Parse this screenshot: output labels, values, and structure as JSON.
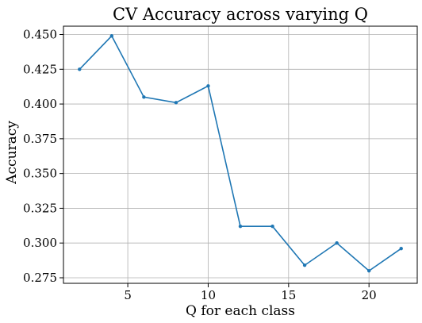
{
  "chart_data": {
    "type": "line",
    "title": "CV Accuracy across varying Q",
    "xlabel": "Q for each class",
    "ylabel": "Accuracy",
    "xlim": [
      1.0,
      23.0
    ],
    "ylim": [
      0.271,
      0.456
    ],
    "xticks": [
      5,
      10,
      15,
      20
    ],
    "yticks": [
      0.275,
      0.3,
      0.325,
      0.35,
      0.375,
      0.4,
      0.425,
      0.45
    ],
    "ytick_labels": [
      "0.275",
      "0.300",
      "0.325",
      "0.350",
      "0.375",
      "0.400",
      "0.425",
      "0.450"
    ],
    "xtick_labels": [
      "5",
      "10",
      "15",
      "20"
    ],
    "grid": true,
    "series": [
      {
        "color": "#1f77b4",
        "x": [
          2,
          4,
          6,
          8,
          10,
          12,
          14,
          16,
          18,
          20,
          22
        ],
        "y": [
          0.425,
          0.449,
          0.405,
          0.401,
          0.413,
          0.312,
          0.312,
          0.284,
          0.3,
          0.28,
          0.296
        ]
      }
    ]
  }
}
